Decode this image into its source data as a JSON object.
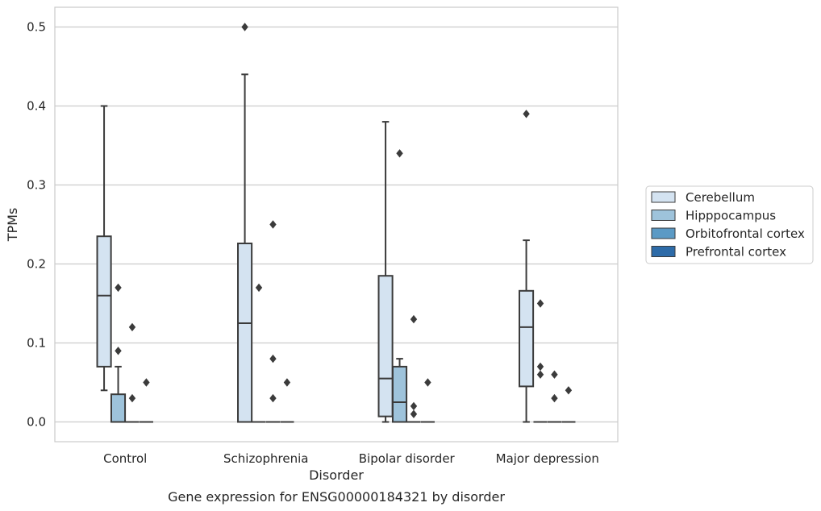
{
  "chart_data": {
    "type": "box",
    "ylabel": "TPMs",
    "xlabel": "Disorder",
    "caption": "Gene expression for ENSG00000184321 by disorder",
    "ylim": [
      -0.025,
      0.525
    ],
    "yticks": [
      0.0,
      0.1,
      0.2,
      0.3,
      0.4,
      0.5
    ],
    "ytick_labels": [
      "0.0",
      "0.1",
      "0.2",
      "0.3",
      "0.4",
      "0.5"
    ],
    "grid": "horizontal",
    "legend_position": "right",
    "categories": [
      "Control",
      "Schizophrenia",
      "Bipolar disorder",
      "Major depression"
    ],
    "series": [
      {
        "name": "Cerebellum",
        "color": "#d4e3f1",
        "boxes": [
          {
            "whislo": 0.04,
            "q1": 0.07,
            "med": 0.16,
            "q3": 0.235,
            "whishi": 0.4,
            "fliers": []
          },
          {
            "whislo": 0.0,
            "q1": 0.0,
            "med": 0.125,
            "q3": 0.226,
            "whishi": 0.44,
            "fliers": [
              0.5
            ]
          },
          {
            "whislo": 0.0,
            "q1": 0.007,
            "med": 0.055,
            "q3": 0.185,
            "whishi": 0.38,
            "fliers": []
          },
          {
            "whislo": 0.0,
            "q1": 0.045,
            "med": 0.12,
            "q3": 0.166,
            "whishi": 0.23,
            "fliers": [
              0.39
            ]
          }
        ]
      },
      {
        "name": "Hipppocampus",
        "color": "#9ec3db",
        "boxes": [
          {
            "whislo": 0.0,
            "q1": 0.0,
            "med": 0.0,
            "q3": 0.035,
            "whishi": 0.07,
            "fliers": [
              0.09,
              0.17
            ]
          },
          {
            "whislo": 0.0,
            "q1": 0.0,
            "med": 0.0,
            "q3": 0.0,
            "whishi": 0.0,
            "fliers": [
              0.17
            ]
          },
          {
            "whislo": 0.0,
            "q1": 0.0,
            "med": 0.025,
            "q3": 0.07,
            "whishi": 0.08,
            "fliers": [
              0.34
            ]
          },
          {
            "whislo": 0.0,
            "q1": 0.0,
            "med": 0.0,
            "q3": 0.0,
            "whishi": 0.0,
            "fliers": [
              0.06,
              0.07,
              0.15
            ]
          }
        ]
      },
      {
        "name": "Orbitofrontal cortex",
        "color": "#5b9ac5",
        "boxes": [
          {
            "whislo": 0.0,
            "q1": 0.0,
            "med": 0.0,
            "q3": 0.0,
            "whishi": 0.0,
            "fliers": [
              0.03,
              0.12
            ]
          },
          {
            "whislo": 0.0,
            "q1": 0.0,
            "med": 0.0,
            "q3": 0.0,
            "whishi": 0.0,
            "fliers": [
              0.03,
              0.08,
              0.25
            ]
          },
          {
            "whislo": 0.0,
            "q1": 0.0,
            "med": 0.0,
            "q3": 0.0,
            "whishi": 0.0,
            "fliers": [
              0.01,
              0.02,
              0.13
            ]
          },
          {
            "whislo": 0.0,
            "q1": 0.0,
            "med": 0.0,
            "q3": 0.0,
            "whishi": 0.0,
            "fliers": [
              0.03,
              0.06
            ]
          }
        ]
      },
      {
        "name": "Prefrontal cortex",
        "color": "#2d6ba8",
        "boxes": [
          {
            "whislo": 0.0,
            "q1": 0.0,
            "med": 0.0,
            "q3": 0.0,
            "whishi": 0.0,
            "fliers": [
              0.05
            ]
          },
          {
            "whislo": 0.0,
            "q1": 0.0,
            "med": 0.0,
            "q3": 0.0,
            "whishi": 0.0,
            "fliers": [
              0.05
            ]
          },
          {
            "whislo": 0.0,
            "q1": 0.0,
            "med": 0.0,
            "q3": 0.0,
            "whishi": 0.0,
            "fliers": [
              0.05
            ]
          },
          {
            "whislo": 0.0,
            "q1": 0.0,
            "med": 0.0,
            "q3": 0.0,
            "whishi": 0.0,
            "fliers": [
              0.04
            ]
          }
        ]
      }
    ]
  }
}
